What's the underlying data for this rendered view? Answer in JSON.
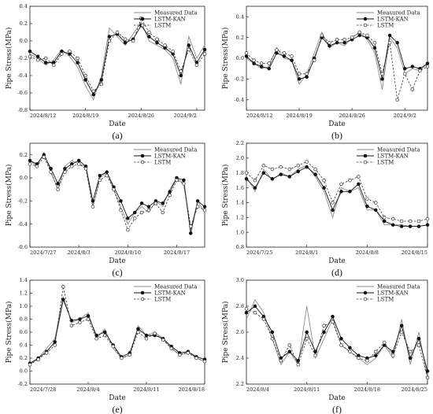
{
  "figure": {
    "legend_entries": [
      "Measured Data",
      "LSTM-KAN",
      "LSTM"
    ],
    "colors": {
      "measured": "#8a8a8a",
      "lstmkan": "#111111",
      "lstm": "#333333"
    }
  },
  "chart_data": [
    {
      "label": "(a)",
      "type": "line",
      "xlabel": "Date",
      "ylabel": "Pipe Stress(MPa)",
      "ylim": [
        -0.8,
        0.4
      ],
      "yticks": [
        -0.8,
        -0.6,
        -0.4,
        -0.2,
        0.0,
        0.2,
        0.4
      ],
      "xticks": [
        "2024/8/12",
        "2024/8/19",
        "2024/8/26",
        "2024/9/2"
      ],
      "xtick_pos": [
        0,
        7,
        14,
        21
      ],
      "xlim": [
        0,
        22
      ],
      "legend": "top-right",
      "series": [
        {
          "name": "Measured Data",
          "x": [
            0,
            1,
            2,
            3,
            4,
            5,
            6,
            7,
            8,
            9,
            10,
            11,
            12,
            13,
            14,
            15,
            16,
            17,
            18,
            19,
            20,
            21,
            22
          ],
          "values": [
            -0.15,
            -0.2,
            -0.28,
            -0.22,
            -0.1,
            -0.18,
            -0.3,
            -0.52,
            -0.68,
            -0.4,
            0.15,
            0.05,
            -0.05,
            0.08,
            0.22,
            0.0,
            -0.05,
            -0.1,
            -0.2,
            -0.5,
            0.05,
            -0.2,
            -0.05
          ]
        },
        {
          "name": "LSTM-KAN",
          "x": [
            0,
            1,
            2,
            3,
            4,
            5,
            6,
            7,
            8,
            9,
            10,
            11,
            12,
            13,
            14,
            15,
            16,
            17,
            18,
            19,
            20,
            21,
            22
          ],
          "values": [
            -0.12,
            -0.18,
            -0.25,
            -0.25,
            -0.12,
            -0.15,
            -0.25,
            -0.45,
            -0.62,
            -0.45,
            0.05,
            0.08,
            -0.02,
            0.02,
            0.18,
            0.05,
            -0.02,
            -0.08,
            -0.15,
            -0.4,
            -0.05,
            -0.25,
            -0.1
          ]
        },
        {
          "name": "LSTM",
          "x": [
            0,
            1,
            2,
            3,
            4,
            5,
            6,
            7,
            8,
            9,
            10,
            11,
            12,
            13,
            14,
            15,
            16,
            17,
            18,
            19,
            20,
            21,
            22
          ],
          "values": [
            -0.18,
            -0.22,
            -0.2,
            -0.28,
            -0.15,
            -0.12,
            -0.2,
            -0.4,
            -0.58,
            -0.5,
            0.0,
            0.1,
            0.02,
            0.0,
            0.26,
            0.1,
            0.02,
            -0.05,
            -0.12,
            -0.35,
            -0.1,
            -0.28,
            -0.15
          ]
        }
      ]
    },
    {
      "label": "(b)",
      "type": "line",
      "xlabel": "Date",
      "ylabel": "Pipe Stress(MPa)",
      "ylim": [
        -0.5,
        0.5
      ],
      "yticks": [
        -0.4,
        -0.2,
        0.0,
        0.2,
        0.4
      ],
      "xticks": [
        "2024/8/12",
        "2024/8/19",
        "2024/8/26",
        "2024/9/2"
      ],
      "xtick_pos": [
        0,
        7,
        14,
        21
      ],
      "xlim": [
        0,
        24
      ],
      "legend": "top-right",
      "series": [
        {
          "name": "Measured Data",
          "x": [
            0,
            1,
            2,
            3,
            4,
            5,
            6,
            7,
            8,
            9,
            10,
            11,
            12,
            13,
            14,
            15,
            16,
            17,
            18,
            19,
            20,
            21,
            22,
            23,
            24
          ],
          "values": [
            0.0,
            -0.05,
            -0.1,
            -0.08,
            0.1,
            0.0,
            -0.02,
            -0.25,
            -0.15,
            0.05,
            0.25,
            0.1,
            0.15,
            0.12,
            0.2,
            0.25,
            0.18,
            0.05,
            -0.3,
            0.2,
            0.1,
            -0.15,
            -0.1,
            -0.12,
            -0.05
          ]
        },
        {
          "name": "LSTM-KAN",
          "x": [
            0,
            1,
            2,
            3,
            4,
            5,
            6,
            7,
            8,
            9,
            10,
            11,
            12,
            13,
            14,
            15,
            16,
            17,
            18,
            19,
            20,
            21,
            22,
            23,
            24
          ],
          "values": [
            0.02,
            -0.05,
            -0.08,
            -0.1,
            0.05,
            0.02,
            -0.02,
            -0.2,
            -0.18,
            0.0,
            0.2,
            0.12,
            0.15,
            0.15,
            0.18,
            0.22,
            0.2,
            0.1,
            -0.2,
            0.22,
            0.15,
            -0.1,
            -0.08,
            -0.1,
            -0.05
          ]
        },
        {
          "name": "LSTM",
          "x": [
            0,
            1,
            2,
            3,
            4,
            5,
            6,
            7,
            8,
            9,
            10,
            11,
            12,
            13,
            14,
            15,
            16,
            17,
            18,
            19,
            20,
            21,
            22,
            23,
            24
          ],
          "values": [
            0.05,
            -0.02,
            -0.05,
            -0.05,
            0.08,
            0.05,
            0.02,
            -0.15,
            -0.15,
            -0.02,
            0.22,
            0.15,
            0.18,
            0.18,
            0.2,
            0.25,
            0.22,
            0.15,
            -0.15,
            0.15,
            -0.4,
            -0.15,
            -0.3,
            -0.12,
            -0.08
          ]
        }
      ]
    },
    {
      "label": "(c)",
      "type": "line",
      "xlabel": "Date",
      "ylabel": "Pipe Stress(MPa)",
      "ylim": [
        -0.6,
        0.3
      ],
      "yticks": [
        -0.6,
        -0.4,
        -0.2,
        0.0,
        0.2
      ],
      "xticks": [
        "2024/7/27",
        "2024/8/3",
        "2024/8/10",
        "2024/8/17"
      ],
      "xtick_pos": [
        0,
        7,
        14,
        21
      ],
      "xlim": [
        0,
        25
      ],
      "legend": "top-right",
      "series": [
        {
          "name": "Measured Data",
          "x": [
            0,
            1,
            2,
            3,
            4,
            5,
            6,
            7,
            8,
            9,
            10,
            11,
            12,
            13,
            14,
            15,
            16,
            17,
            18,
            19,
            20,
            21,
            22,
            23,
            24,
            25
          ],
          "values": [
            0.15,
            0.1,
            0.22,
            0.05,
            -0.1,
            0.1,
            0.15,
            0.12,
            0.1,
            -0.25,
            0.0,
            0.05,
            -0.1,
            -0.25,
            -0.4,
            -0.3,
            -0.25,
            -0.3,
            -0.2,
            -0.25,
            -0.1,
            0.0,
            -0.05,
            -0.45,
            -0.2,
            -0.3
          ]
        },
        {
          "name": "LSTM-KAN",
          "x": [
            0,
            1,
            2,
            3,
            4,
            5,
            6,
            7,
            8,
            9,
            10,
            11,
            12,
            13,
            14,
            15,
            16,
            17,
            18,
            19,
            20,
            21,
            22,
            23,
            24,
            25
          ],
          "values": [
            0.15,
            0.12,
            0.2,
            0.08,
            -0.05,
            0.08,
            0.12,
            0.15,
            0.1,
            -0.2,
            0.02,
            0.05,
            -0.08,
            -0.2,
            -0.35,
            -0.3,
            -0.22,
            -0.25,
            -0.2,
            -0.22,
            -0.12,
            0.0,
            -0.02,
            -0.48,
            -0.2,
            -0.25
          ]
        },
        {
          "name": "LSTM",
          "x": [
            0,
            1,
            2,
            3,
            4,
            5,
            6,
            7,
            8,
            9,
            10,
            11,
            12,
            13,
            14,
            15,
            16,
            17,
            18,
            19,
            20,
            21,
            22,
            23,
            24,
            25
          ],
          "values": [
            0.12,
            0.1,
            0.18,
            0.05,
            -0.1,
            0.05,
            0.1,
            0.12,
            0.08,
            -0.25,
            -0.02,
            0.02,
            -0.1,
            -0.28,
            -0.45,
            -0.35,
            -0.3,
            -0.28,
            -0.22,
            -0.3,
            -0.15,
            -0.02,
            -0.05,
            -0.42,
            -0.25,
            -0.28
          ]
        }
      ]
    },
    {
      "label": "(d)",
      "type": "line",
      "xlabel": "Date",
      "ylabel": "Pipe Stress(MPa)",
      "ylim": [
        0.8,
        2.2
      ],
      "yticks": [
        0.8,
        1.0,
        1.2,
        1.4,
        1.6,
        1.8,
        2.0,
        2.2
      ],
      "xticks": [
        "2024/7/25",
        "2024/8/1",
        "2024/8/8",
        "2024/8/15"
      ],
      "xtick_pos": [
        0,
        7,
        14,
        21
      ],
      "xlim": [
        0,
        21
      ],
      "legend": "top-right",
      "series": [
        {
          "name": "Measured Data",
          "x": [
            0,
            1,
            2,
            3,
            4,
            5,
            6,
            7,
            8,
            9,
            10,
            11,
            12,
            13,
            14,
            15,
            16,
            17,
            18,
            19,
            20,
            21
          ],
          "values": [
            1.75,
            1.55,
            1.85,
            1.7,
            1.8,
            1.75,
            1.85,
            1.9,
            1.75,
            1.55,
            1.2,
            1.6,
            1.55,
            1.6,
            1.3,
            1.3,
            1.1,
            1.1,
            1.1,
            1.08,
            1.08,
            1.1
          ]
        },
        {
          "name": "LSTM-KAN",
          "x": [
            0,
            1,
            2,
            3,
            4,
            5,
            6,
            7,
            8,
            9,
            10,
            11,
            12,
            13,
            14,
            15,
            16,
            17,
            18,
            19,
            20,
            21
          ],
          "values": [
            1.72,
            1.6,
            1.8,
            1.72,
            1.78,
            1.75,
            1.82,
            1.88,
            1.78,
            1.6,
            1.3,
            1.55,
            1.55,
            1.65,
            1.35,
            1.3,
            1.15,
            1.1,
            1.08,
            1.08,
            1.08,
            1.1
          ]
        },
        {
          "name": "LSTM",
          "x": [
            0,
            1,
            2,
            3,
            4,
            5,
            6,
            7,
            8,
            9,
            10,
            11,
            12,
            13,
            14,
            15,
            16,
            17,
            18,
            19,
            20,
            21
          ],
          "values": [
            1.8,
            1.7,
            1.9,
            1.85,
            1.88,
            1.85,
            1.9,
            1.95,
            1.85,
            1.7,
            1.4,
            1.65,
            1.7,
            1.75,
            1.45,
            1.4,
            1.2,
            1.18,
            1.15,
            1.15,
            1.15,
            1.18
          ]
        }
      ]
    },
    {
      "label": "(e)",
      "type": "line",
      "xlabel": "Date",
      "ylabel": "Pipe Stress(MPa)",
      "ylim": [
        -0.2,
        1.4
      ],
      "yticks": [
        -0.2,
        0.0,
        0.2,
        0.4,
        0.6,
        0.8,
        1.0,
        1.2,
        1.4
      ],
      "xticks": [
        "2024/7/28",
        "2024/8/4",
        "2024/8/11",
        "2024/8/18"
      ],
      "xtick_pos": [
        0,
        7,
        14,
        21
      ],
      "xlim": [
        0,
        21
      ],
      "legend": "top-right",
      "series": [
        {
          "name": "Measured Data",
          "x": [
            0,
            1,
            2,
            3,
            4,
            5,
            6,
            7,
            8,
            9,
            10,
            11,
            12,
            13,
            14,
            15,
            16,
            17,
            18,
            19,
            20,
            21
          ],
          "values": [
            0.1,
            0.2,
            0.35,
            0.5,
            1.15,
            0.75,
            0.8,
            0.9,
            0.5,
            0.65,
            0.35,
            0.2,
            0.25,
            0.7,
            0.55,
            0.6,
            0.5,
            0.35,
            0.25,
            0.3,
            0.2,
            0.15
          ]
        },
        {
          "name": "LSTM-KAN",
          "x": [
            0,
            1,
            2,
            3,
            4,
            5,
            6,
            7,
            8,
            9,
            10,
            11,
            12,
            13,
            14,
            15,
            16,
            17,
            18,
            19,
            20,
            21
          ],
          "values": [
            0.12,
            0.2,
            0.3,
            0.45,
            1.1,
            0.78,
            0.8,
            0.85,
            0.55,
            0.6,
            0.4,
            0.22,
            0.28,
            0.65,
            0.55,
            0.55,
            0.5,
            0.38,
            0.28,
            0.3,
            0.22,
            0.18
          ]
        },
        {
          "name": "LSTM",
          "x": [
            0,
            1,
            2,
            3,
            4,
            5,
            6,
            7,
            8,
            9,
            10,
            11,
            12,
            13,
            14,
            15,
            16,
            17,
            18,
            19,
            20,
            21
          ],
          "values": [
            0.1,
            0.18,
            0.28,
            0.4,
            1.3,
            0.7,
            0.75,
            0.8,
            0.5,
            0.55,
            0.38,
            0.2,
            0.25,
            0.6,
            0.5,
            0.58,
            0.48,
            0.35,
            0.25,
            0.28,
            0.2,
            0.15
          ]
        }
      ]
    },
    {
      "label": "(f)",
      "type": "line",
      "xlabel": "Date",
      "ylabel": "Pipe Stress(MPa)",
      "ylim": [
        2.2,
        3.0
      ],
      "yticks": [
        2.2,
        2.4,
        2.6,
        2.8,
        3.0
      ],
      "xticks": [
        "2024/8/4",
        "2024/8/11",
        "2024/8/18",
        "2024/8/25"
      ],
      "xtick_pos": [
        0,
        7,
        14,
        21
      ],
      "xlim": [
        0,
        21
      ],
      "legend": "top-right",
      "series": [
        {
          "name": "Measured Data",
          "x": [
            0,
            1,
            2,
            3,
            4,
            5,
            6,
            7,
            8,
            9,
            10,
            11,
            12,
            13,
            14,
            15,
            16,
            17,
            18,
            19,
            20,
            21
          ],
          "values": [
            2.7,
            2.85,
            2.75,
            2.55,
            2.35,
            2.45,
            2.35,
            2.8,
            2.4,
            2.55,
            2.7,
            2.5,
            2.45,
            2.4,
            2.35,
            2.4,
            2.5,
            2.4,
            2.7,
            2.35,
            2.6,
            2.25
          ]
        },
        {
          "name": "LSTM-KAN",
          "x": [
            0,
            1,
            2,
            3,
            4,
            5,
            6,
            7,
            8,
            9,
            10,
            11,
            12,
            13,
            14,
            15,
            16,
            17,
            18,
            19,
            20,
            21
          ],
          "values": [
            2.75,
            2.8,
            2.72,
            2.6,
            2.4,
            2.45,
            2.38,
            2.6,
            2.45,
            2.6,
            2.72,
            2.55,
            2.48,
            2.42,
            2.4,
            2.42,
            2.5,
            2.45,
            2.65,
            2.4,
            2.55,
            2.3
          ]
        },
        {
          "name": "LSTM",
          "x": [
            0,
            1,
            2,
            3,
            4,
            5,
            6,
            7,
            8,
            9,
            10,
            11,
            12,
            13,
            14,
            15,
            16,
            17,
            18,
            19,
            20,
            21
          ],
          "values": [
            2.78,
            2.75,
            2.7,
            2.55,
            2.38,
            2.5,
            2.35,
            2.55,
            2.42,
            2.65,
            2.68,
            2.5,
            2.45,
            2.4,
            2.38,
            2.45,
            2.52,
            2.42,
            2.6,
            2.45,
            2.5,
            2.25
          ]
        }
      ]
    }
  ]
}
